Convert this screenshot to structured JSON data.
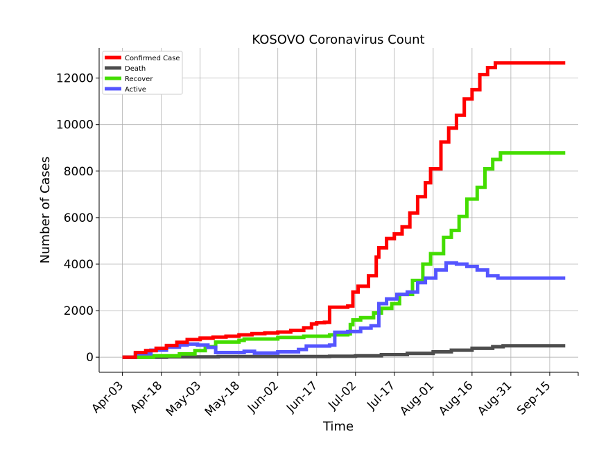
{
  "chart_data": {
    "type": "line",
    "title": "KOSOVO Coronavirus Count",
    "xlabel": "Time",
    "ylabel": "Number of Cases",
    "x_tick_labels": [
      "Apr-03",
      "Apr-18",
      "May-03",
      "May-18",
      "Jun-02",
      "Jun-17",
      "Jul-02",
      "Jul-17",
      "Aug-01",
      "Aug-16",
      "Aug-31",
      "Sep-15"
    ],
    "y_tick_labels": [
      "0",
      "2000",
      "4000",
      "6000",
      "8000",
      "10000",
      "12000"
    ],
    "ylim": [
      -650,
      13300
    ],
    "xlim": [
      "2020-03-25",
      "2020-09-26"
    ],
    "grid": true,
    "legend_position": "top-left",
    "series": [
      {
        "name": "Confirmed Case",
        "color": "#ff0000",
        "points": [
          [
            "2020-04-03",
            0
          ],
          [
            "2020-04-08",
            200
          ],
          [
            "2020-04-12",
            280
          ],
          [
            "2020-04-16",
            380
          ],
          [
            "2020-04-20",
            500
          ],
          [
            "2020-04-24",
            640
          ],
          [
            "2020-04-28",
            760
          ],
          [
            "2020-05-03",
            820
          ],
          [
            "2020-05-08",
            860
          ],
          [
            "2020-05-13",
            900
          ],
          [
            "2020-05-18",
            960
          ],
          [
            "2020-05-23",
            1010
          ],
          [
            "2020-05-28",
            1040
          ],
          [
            "2020-06-02",
            1080
          ],
          [
            "2020-06-07",
            1150
          ],
          [
            "2020-06-12",
            1260
          ],
          [
            "2020-06-15",
            1430
          ],
          [
            "2020-06-17",
            1480
          ],
          [
            "2020-06-20",
            1500
          ],
          [
            "2020-06-22",
            2150
          ],
          [
            "2020-06-29",
            2200
          ],
          [
            "2020-07-01",
            2800
          ],
          [
            "2020-07-03",
            3050
          ],
          [
            "2020-07-07",
            3500
          ],
          [
            "2020-07-10",
            4300
          ],
          [
            "2020-07-11",
            4700
          ],
          [
            "2020-07-14",
            5100
          ],
          [
            "2020-07-17",
            5300
          ],
          [
            "2020-07-20",
            5600
          ],
          [
            "2020-07-23",
            6200
          ],
          [
            "2020-07-26",
            6900
          ],
          [
            "2020-07-29",
            7500
          ],
          [
            "2020-07-31",
            8100
          ],
          [
            "2020-08-04",
            9250
          ],
          [
            "2020-08-07",
            9850
          ],
          [
            "2020-08-10",
            10400
          ],
          [
            "2020-08-13",
            11100
          ],
          [
            "2020-08-16",
            11500
          ],
          [
            "2020-08-19",
            12150
          ],
          [
            "2020-08-22",
            12450
          ],
          [
            "2020-08-25",
            12650
          ],
          [
            "2020-09-21",
            12650
          ]
        ]
      },
      {
        "name": "Death",
        "color": "#4d4d4d",
        "points": [
          [
            "2020-04-03",
            0
          ],
          [
            "2020-04-20",
            15
          ],
          [
            "2020-05-10",
            30
          ],
          [
            "2020-06-02",
            30
          ],
          [
            "2020-06-22",
            40
          ],
          [
            "2020-07-02",
            60
          ],
          [
            "2020-07-12",
            110
          ],
          [
            "2020-07-22",
            160
          ],
          [
            "2020-08-01",
            230
          ],
          [
            "2020-08-08",
            300
          ],
          [
            "2020-08-16",
            380
          ],
          [
            "2020-08-24",
            450
          ],
          [
            "2020-08-28",
            490
          ],
          [
            "2020-09-21",
            490
          ]
        ]
      },
      {
        "name": "Recover",
        "color": "#44dd00",
        "points": [
          [
            "2020-04-03",
            0
          ],
          [
            "2020-04-15",
            60
          ],
          [
            "2020-04-25",
            140
          ],
          [
            "2020-05-01",
            280
          ],
          [
            "2020-05-05",
            450
          ],
          [
            "2020-05-09",
            650
          ],
          [
            "2020-05-18",
            720
          ],
          [
            "2020-05-20",
            780
          ],
          [
            "2020-06-02",
            850
          ],
          [
            "2020-06-12",
            900
          ],
          [
            "2020-06-22",
            960
          ],
          [
            "2020-06-29",
            1000
          ],
          [
            "2020-06-30",
            1400
          ],
          [
            "2020-07-01",
            1600
          ],
          [
            "2020-07-04",
            1700
          ],
          [
            "2020-07-09",
            1900
          ],
          [
            "2020-07-12",
            2100
          ],
          [
            "2020-07-16",
            2300
          ],
          [
            "2020-07-19",
            2700
          ],
          [
            "2020-07-24",
            3300
          ],
          [
            "2020-07-28",
            4000
          ],
          [
            "2020-07-31",
            4450
          ],
          [
            "2020-08-05",
            5150
          ],
          [
            "2020-08-08",
            5450
          ],
          [
            "2020-08-11",
            6050
          ],
          [
            "2020-08-14",
            6800
          ],
          [
            "2020-08-18",
            7300
          ],
          [
            "2020-08-21",
            8100
          ],
          [
            "2020-08-24",
            8500
          ],
          [
            "2020-08-27",
            8780
          ],
          [
            "2020-09-21",
            8780
          ]
        ]
      },
      {
        "name": "Active",
        "color": "#5555ff",
        "points": [
          [
            "2020-04-03",
            0
          ],
          [
            "2020-04-08",
            150
          ],
          [
            "2020-04-14",
            300
          ],
          [
            "2020-04-20",
            430
          ],
          [
            "2020-04-25",
            520
          ],
          [
            "2020-04-28",
            560
          ],
          [
            "2020-05-02",
            520
          ],
          [
            "2020-05-06",
            420
          ],
          [
            "2020-05-09",
            200
          ],
          [
            "2020-05-14",
            200
          ],
          [
            "2020-05-20",
            250
          ],
          [
            "2020-05-24",
            180
          ],
          [
            "2020-06-02",
            230
          ],
          [
            "2020-06-10",
            330
          ],
          [
            "2020-06-13",
            480
          ],
          [
            "2020-06-22",
            520
          ],
          [
            "2020-06-24",
            1070
          ],
          [
            "2020-06-29",
            1100
          ],
          [
            "2020-07-04",
            1250
          ],
          [
            "2020-07-08",
            1350
          ],
          [
            "2020-07-11",
            2300
          ],
          [
            "2020-07-14",
            2500
          ],
          [
            "2020-07-18",
            2700
          ],
          [
            "2020-07-22",
            2800
          ],
          [
            "2020-07-26",
            3200
          ],
          [
            "2020-07-29",
            3400
          ],
          [
            "2020-08-02",
            3750
          ],
          [
            "2020-08-06",
            4050
          ],
          [
            "2020-08-10",
            4000
          ],
          [
            "2020-08-14",
            3900
          ],
          [
            "2020-08-18",
            3750
          ],
          [
            "2020-08-22",
            3500
          ],
          [
            "2020-08-26",
            3400
          ],
          [
            "2020-09-21",
            3400
          ]
        ]
      }
    ]
  }
}
